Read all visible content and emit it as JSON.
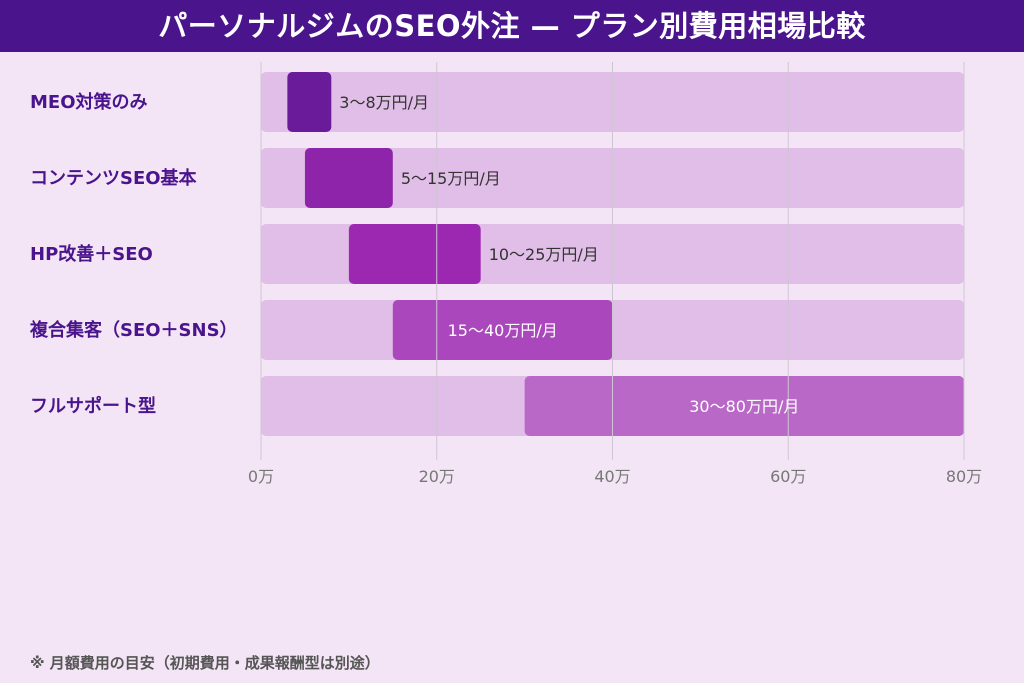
{
  "chart_data": {
    "type": "bar",
    "orientation": "horizontal",
    "style": "range",
    "title": "パーソナルジムのSEO外注 — プラン別費用相場比較",
    "categories": [
      "MEO対策のみ",
      "コンテンツSEO基本",
      "HP改善＋SEO",
      "複合集客（SEO＋SNS）",
      "フルサポート型"
    ],
    "ranges": [
      [
        3,
        8
      ],
      [
        5,
        15
      ],
      [
        10,
        25
      ],
      [
        15,
        40
      ],
      [
        30,
        80
      ]
    ],
    "data_labels": [
      "3〜8万円/月",
      "5〜15万円/月",
      "10〜25万円/月",
      "15〜40万円/月",
      "30〜80万円/月"
    ],
    "colors": [
      "#6a1b9a",
      "#8e24aa",
      "#9c27b0",
      "#ab47bc",
      "#ba68c8"
    ],
    "label_colors": [
      "#333333",
      "#333333",
      "#333333",
      "#ffffff",
      "#ffffff"
    ],
    "track_color": "#e1bee7",
    "xlim": [
      0,
      80
    ],
    "xticks": [
      0,
      20,
      40,
      60,
      80
    ],
    "xtick_labels": [
      "0万",
      "20万",
      "40万",
      "60万",
      "80万"
    ],
    "grid": true,
    "footnote": "※ 月額費用の目安（初期費用・成果報酬型は別途）"
  }
}
